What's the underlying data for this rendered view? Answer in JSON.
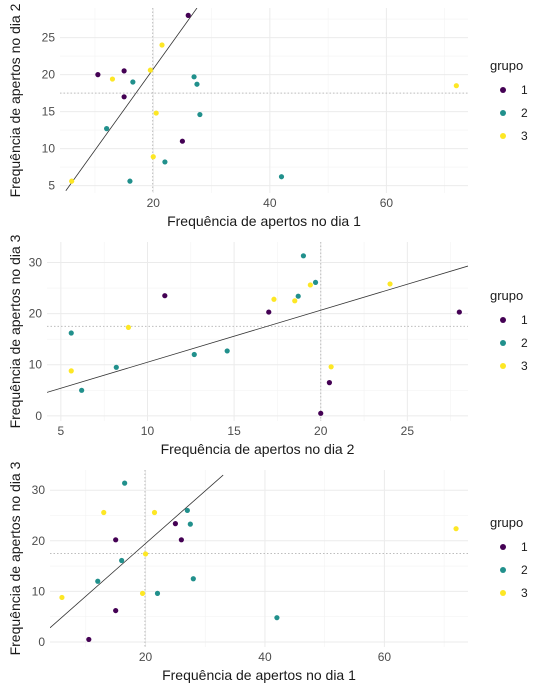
{
  "colors": {
    "grupo_1": "#440154",
    "grupo_2": "#21908C",
    "grupo_3": "#FDE725",
    "grid": "#ebebeb",
    "mean_line": "#bdbdbd",
    "fit_line": "#333333"
  },
  "chart_data": [
    {
      "type": "scatter",
      "xlabel": "Frequência de apertos no dia 1",
      "ylabel": "Frequência de apertos no dia 2",
      "xlim": [
        4,
        74
      ],
      "ylim": [
        4,
        29
      ],
      "xticks": [
        20,
        40,
        60
      ],
      "yticks": [
        5,
        10,
        15,
        20,
        25
      ],
      "x_minor_grid": [
        10,
        30,
        50,
        70
      ],
      "y_minor_grid": [
        7.5,
        12.5,
        17.5,
        22.5,
        27.5
      ],
      "mean_x": 19.9,
      "mean_y": 17.5,
      "fit_line": [
        [
          5,
          4.3
        ],
        [
          27.5,
          29
        ]
      ],
      "legend": {
        "title": "grupo",
        "labels": [
          "1",
          "2",
          "3"
        ],
        "position": "right"
      },
      "series": [
        {
          "name": "1",
          "points": [
            [
              10.5,
              20.0
            ],
            [
              15.0,
              20.5
            ],
            [
              15.0,
              17.0
            ],
            [
              25.0,
              11.0
            ],
            [
              26.0,
              28.0
            ]
          ]
        },
        {
          "name": "2",
          "points": [
            [
              12.0,
              12.7
            ],
            [
              16.0,
              5.6
            ],
            [
              16.5,
              19.0
            ],
            [
              22.0,
              8.2
            ],
            [
              27.0,
              19.7
            ],
            [
              27.5,
              18.7
            ],
            [
              28.0,
              14.6
            ],
            [
              42.0,
              6.2
            ]
          ]
        },
        {
          "name": "3",
          "points": [
            [
              6.0,
              5.6
            ],
            [
              13.0,
              19.4
            ],
            [
              19.5,
              20.6
            ],
            [
              20.0,
              8.9
            ],
            [
              20.5,
              14.8
            ],
            [
              21.5,
              24.0
            ],
            [
              72.0,
              18.5
            ]
          ]
        }
      ]
    },
    {
      "type": "scatter",
      "xlabel": "Frequência de apertos no dia 2",
      "ylabel": "Frequência de apertos no dia 3",
      "xlim": [
        4.2,
        28.5
      ],
      "ylim": [
        -1,
        34
      ],
      "xticks": [
        5,
        10,
        15,
        20,
        25
      ],
      "yticks": [
        0,
        10,
        20,
        30
      ],
      "x_minor_grid": [
        7.5,
        12.5,
        17.5,
        22.5,
        27.5
      ],
      "y_minor_grid": [
        5,
        15,
        25
      ],
      "mean_x": 20.0,
      "mean_y": 17.5,
      "fit_line": [
        [
          4.2,
          4.6
        ],
        [
          28.5,
          29.3
        ]
      ],
      "legend": {
        "title": "grupo",
        "labels": [
          "1",
          "2",
          "3"
        ],
        "position": "right"
      },
      "series": [
        {
          "name": "1",
          "points": [
            [
              11.0,
              23.5
            ],
            [
              17.0,
              20.3
            ],
            [
              20.0,
              0.5
            ],
            [
              20.5,
              6.5
            ],
            [
              28.0,
              20.3
            ]
          ]
        },
        {
          "name": "2",
          "points": [
            [
              5.6,
              16.2
            ],
            [
              6.2,
              5.0
            ],
            [
              8.2,
              9.5
            ],
            [
              12.7,
              12.0
            ],
            [
              14.6,
              12.7
            ],
            [
              18.7,
              23.4
            ],
            [
              19.0,
              31.3
            ],
            [
              19.7,
              26.1
            ]
          ]
        },
        {
          "name": "3",
          "points": [
            [
              5.6,
              8.8
            ],
            [
              8.9,
              17.3
            ],
            [
              17.3,
              22.8
            ],
            [
              18.5,
              22.5
            ],
            [
              19.4,
              25.6
            ],
            [
              20.6,
              9.6
            ],
            [
              24.0,
              25.8
            ]
          ]
        }
      ]
    },
    {
      "type": "scatter",
      "xlabel": "Frequência de apertos no dia 1",
      "ylabel": "Frequência de apertos no dia 3",
      "xlim": [
        4,
        74
      ],
      "ylim": [
        -1,
        34
      ],
      "xticks": [
        20,
        40,
        60
      ],
      "yticks": [
        0,
        10,
        20,
        30
      ],
      "x_minor_grid": [
        10,
        30,
        50,
        70
      ],
      "y_minor_grid": [
        5,
        15,
        25
      ],
      "mean_x": 19.9,
      "mean_y": 17.5,
      "fit_line": [
        [
          4,
          2.8
        ],
        [
          33,
          33.0
        ]
      ],
      "legend": {
        "title": "grupo",
        "labels": [
          "1",
          "2",
          "3"
        ],
        "position": "right"
      },
      "series": [
        {
          "name": "1",
          "points": [
            [
              10.5,
              0.5
            ],
            [
              15.0,
              6.2
            ],
            [
              15.0,
              20.2
            ],
            [
              25.0,
              23.4
            ],
            [
              26.0,
              20.2
            ]
          ]
        },
        {
          "name": "2",
          "points": [
            [
              12.0,
              12.0
            ],
            [
              16.0,
              16.1
            ],
            [
              16.5,
              31.4
            ],
            [
              22.0,
              9.6
            ],
            [
              27.0,
              26.0
            ],
            [
              27.5,
              23.3
            ],
            [
              28.0,
              12.5
            ],
            [
              42.0,
              4.8
            ]
          ]
        },
        {
          "name": "3",
          "points": [
            [
              6.0,
              8.8
            ],
            [
              13.0,
              25.6
            ],
            [
              19.5,
              9.6
            ],
            [
              20.0,
              17.4
            ],
            [
              21.5,
              25.6
            ],
            [
              72.0,
              22.4
            ]
          ]
        }
      ]
    }
  ]
}
